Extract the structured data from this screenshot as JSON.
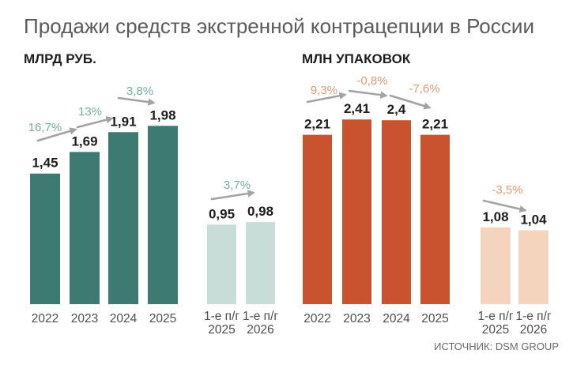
{
  "title": "Продажи средств экстренной контрацепции в России",
  "source": "ИСТОЧНИК: DSM GROUP",
  "chart_data": [
    {
      "type": "bar",
      "heading": "МЛРД РУБ.",
      "growth_color": "#76ada1",
      "annual": {
        "categories": [
          "2022",
          "2023",
          "2024",
          "2025"
        ],
        "values": [
          1.45,
          1.69,
          1.91,
          1.98
        ],
        "labels": [
          "1,45",
          "1,69",
          "1,91",
          "1,98"
        ],
        "growth": [
          "16,7%",
          "13%",
          "3,8%"
        ],
        "bar_color": "#3d7b72"
      },
      "half_year": {
        "categories": [
          [
            "1-е п/г",
            "2025"
          ],
          [
            "1-е п/г",
            "2026"
          ]
        ],
        "values": [
          0.95,
          0.98
        ],
        "labels": [
          "0,95",
          "0,98"
        ],
        "growth": [
          "3,7%"
        ],
        "bar_color": "#c8ddd7"
      }
    },
    {
      "type": "bar",
      "heading": "МЛН УПАКОВОК",
      "growth_color": "#e39a76",
      "annual": {
        "categories": [
          "2022",
          "2023",
          "2024",
          "2025"
        ],
        "values": [
          2.21,
          2.41,
          2.4,
          2.21
        ],
        "labels": [
          "2,21",
          "2,41",
          "2,4",
          "2,21"
        ],
        "growth": [
          "9,3%",
          "-0,8%",
          "-7,6%"
        ],
        "bar_color": "#c9532f"
      },
      "half_year": {
        "categories": [
          [
            "1-е п/г",
            "2025"
          ],
          [
            "1-е п/г",
            "2026"
          ]
        ],
        "values": [
          1.08,
          1.04
        ],
        "labels": [
          "1,08",
          "1,04"
        ],
        "growth": [
          "-3,5%"
        ],
        "bar_color": "#f4d4bd"
      }
    }
  ]
}
